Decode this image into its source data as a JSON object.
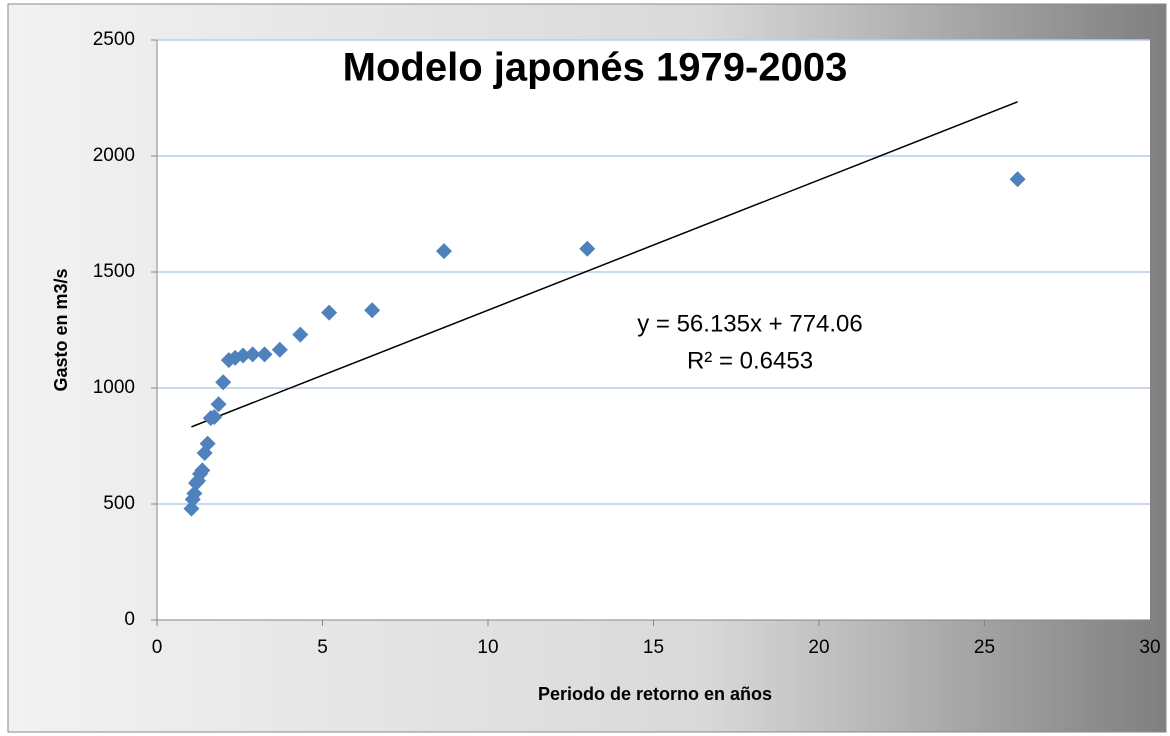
{
  "chart_data": {
    "type": "scatter",
    "title": "Modelo japonés 1979-2003",
    "x_label": "Periodo de retorno en años",
    "y_label": "Gasto en m3/s",
    "series": [
      {
        "color": "#4f81bd",
        "x": [
          26,
          13,
          8.67,
          6.5,
          5.2,
          4.33,
          3.71,
          3.25,
          2.89,
          2.6,
          2.36,
          2.17,
          2.0,
          1.86,
          1.73,
          1.625,
          1.53,
          1.44,
          1.37,
          1.3,
          1.24,
          1.18,
          1.13,
          1.08,
          1.04
        ],
        "values": [
          1900,
          1600,
          1590,
          1335,
          1325,
          1230,
          1165,
          1145,
          1145,
          1140,
          1130,
          1120,
          1025,
          930,
          875,
          870,
          760,
          720,
          645,
          630,
          600,
          590,
          545,
          520,
          480
        ]
      }
    ],
    "trendline": {
      "slope": 56.135,
      "intercept": 774.06,
      "equation": "y = 56.135x + 774.06",
      "r2": "R² = 0.6453"
    },
    "xlim": [
      0,
      30
    ],
    "xticks": [
      0,
      5,
      10,
      15,
      20,
      25,
      30
    ],
    "ylim": [
      0,
      2500
    ],
    "yticks": [
      0,
      500,
      1000,
      1500,
      2000,
      2500
    ],
    "grid": true
  }
}
